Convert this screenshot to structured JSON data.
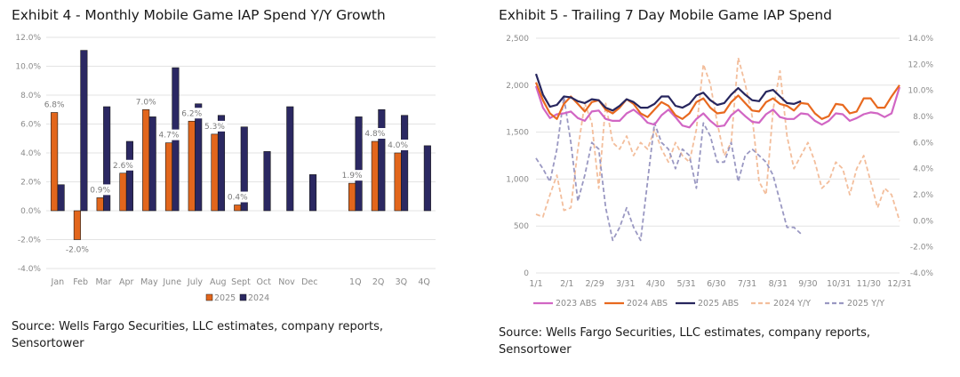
{
  "exhibit4": {
    "title": "Exhibit 4 - Monthly Mobile Game IAP Spend Y/Y Growth",
    "source": "Source: Wells Fargo Securities, LLC estimates, company reports, Sensortower"
  },
  "exhibit5": {
    "title": "Exhibit 5 - Trailing 7 Day Mobile Game IAP Spend",
    "source": "Source: Wells Fargo Securities, LLC estimates, company reports, Sensortower"
  },
  "chart_data": [
    {
      "type": "bar",
      "title": "Exhibit 4 - Monthly Mobile Game IAP Spend Y/Y Growth",
      "xlabel": "",
      "ylabel": "",
      "ylim": [
        -4.0,
        12.0
      ],
      "yticks": [
        "12.0%",
        "10.0%",
        "8.0%",
        "6.0%",
        "4.0%",
        "2.0%",
        "0.0%",
        "-2.0%",
        "-4.0%"
      ],
      "ytick_values": [
        12,
        10,
        8,
        6,
        4,
        2,
        0,
        -2,
        -4
      ],
      "grid": true,
      "legend_position": "bottom",
      "categories": [
        "Jan",
        "Feb",
        "Mar",
        "Apr",
        "May",
        "June",
        "July",
        "Aug",
        "Sept",
        "Oct",
        "Nov",
        "Dec",
        "",
        "1Q",
        "2Q",
        "3Q",
        "4Q"
      ],
      "series": [
        {
          "name": "2025",
          "color": "#E2661C",
          "values": [
            6.8,
            -2.0,
            0.9,
            2.6,
            7.0,
            4.7,
            6.2,
            5.3,
            0.4,
            null,
            null,
            null,
            null,
            1.9,
            4.8,
            4.0,
            null
          ],
          "labels": [
            "6.8%",
            "-2.0%",
            "0.9%",
            "2.6%",
            "7.0%",
            "4.7%",
            "6.2%",
            "5.3%",
            "0.4%",
            "",
            "",
            "",
            "",
            "1.9%",
            "4.8%",
            "4.0%",
            ""
          ]
        },
        {
          "name": "2024",
          "color": "#2B2862",
          "values": [
            1.8,
            11.1,
            7.2,
            4.8,
            6.5,
            9.9,
            7.4,
            6.6,
            5.8,
            4.1,
            7.2,
            2.5,
            null,
            6.5,
            7.0,
            6.6,
            4.5
          ]
        }
      ]
    },
    {
      "type": "line",
      "title": "Exhibit 5 - Trailing 7 Day Mobile Game IAP Spend",
      "ylim": [
        0,
        2500
      ],
      "y2lim": [
        -4.0,
        14.0
      ],
      "yticks": [
        "2,500",
        "2,000",
        "1,500",
        "1,000",
        "500",
        "0"
      ],
      "ytick_values": [
        2500,
        2000,
        1500,
        1000,
        500,
        0
      ],
      "y2ticks": [
        "14.0%",
        "12.0%",
        "10.0%",
        "8.0%",
        "6.0%",
        "4.0%",
        "2.0%",
        "0.0%",
        "-2.0%",
        "-4.0%"
      ],
      "y2tick_values": [
        14,
        12,
        10,
        8,
        6,
        4,
        2,
        0,
        -2,
        -4
      ],
      "x_ticks": [
        "1/1",
        "2/1",
        "2/29",
        "3/31",
        "4/30",
        "5/31",
        "6/30",
        "7/31",
        "8/31",
        "9/30",
        "10/31",
        "11/30",
        "12/31"
      ],
      "x_tick_days": [
        0,
        31,
        59,
        90,
        120,
        151,
        181,
        212,
        243,
        273,
        304,
        334,
        365
      ],
      "grid": true,
      "legend_position": "bottom",
      "x_days": [
        0,
        7,
        14,
        21,
        28,
        35,
        42,
        49,
        56,
        63,
        70,
        77,
        84,
        91,
        98,
        105,
        112,
        119,
        126,
        133,
        140,
        147,
        154,
        161,
        168,
        175,
        182,
        189,
        196,
        203,
        210,
        217,
        224,
        231,
        238,
        245,
        252,
        259,
        266,
        273,
        280,
        287,
        294,
        301,
        308,
        315,
        322,
        329,
        336,
        343,
        350,
        357,
        365
      ],
      "series": [
        {
          "name": "2023 ABS",
          "axis": "left",
          "color": "#D166C4",
          "dash": false,
          "values": [
            1990,
            1760,
            1650,
            1690,
            1700,
            1720,
            1650,
            1620,
            1720,
            1730,
            1640,
            1620,
            1620,
            1700,
            1740,
            1680,
            1600,
            1580,
            1680,
            1740,
            1660,
            1570,
            1550,
            1640,
            1700,
            1620,
            1560,
            1570,
            1680,
            1740,
            1670,
            1610,
            1600,
            1690,
            1740,
            1660,
            1640,
            1640,
            1700,
            1690,
            1620,
            1580,
            1620,
            1700,
            1690,
            1620,
            1650,
            1690,
            1710,
            1700,
            1660,
            1700,
            1980
          ]
        },
        {
          "name": "2024 ABS",
          "axis": "left",
          "color": "#E8691F",
          "dash": false,
          "values": [
            2030,
            1840,
            1700,
            1640,
            1800,
            1880,
            1800,
            1720,
            1820,
            1840,
            1740,
            1700,
            1760,
            1850,
            1800,
            1700,
            1660,
            1740,
            1820,
            1780,
            1680,
            1640,
            1700,
            1820,
            1860,
            1760,
            1700,
            1710,
            1820,
            1890,
            1810,
            1730,
            1720,
            1820,
            1860,
            1800,
            1780,
            1730,
            1810,
            1800,
            1700,
            1640,
            1670,
            1800,
            1790,
            1700,
            1720,
            1860,
            1860,
            1760,
            1760,
            1880,
            2000
          ]
        },
        {
          "name": "2025 ABS",
          "axis": "left",
          "color": "#27265E",
          "dash": false,
          "values": [
            2120,
            1900,
            1770,
            1790,
            1880,
            1870,
            1830,
            1810,
            1850,
            1840,
            1760,
            1730,
            1780,
            1850,
            1820,
            1760,
            1760,
            1800,
            1880,
            1880,
            1780,
            1760,
            1800,
            1890,
            1920,
            1840,
            1790,
            1810,
            1900,
            1970,
            1900,
            1840,
            1830,
            1930,
            1950,
            1880,
            1810,
            1800,
            1830
          ]
        },
        {
          "name": "2024 Y/Y",
          "axis": "right",
          "color": "#F3BE9C",
          "dash": true,
          "values": [
            0.5,
            0.3,
            2.0,
            3.5,
            0.8,
            1.0,
            5.5,
            9.0,
            7.5,
            2.5,
            9.0,
            6.0,
            5.5,
            6.5,
            5.0,
            6.0,
            5.5,
            7.0,
            5.5,
            4.5,
            6.0,
            5.0,
            4.5,
            7.0,
            12.0,
            10.5,
            7.5,
            5.0,
            6.0,
            12.5,
            10.5,
            8.0,
            3.0,
            2.0,
            8.5,
            11.5,
            6.5,
            4.0,
            5.0,
            6.0,
            4.5,
            2.5,
            3.0,
            4.5,
            4.0,
            2.0,
            4.0,
            5.0,
            3.0,
            1.0,
            2.5,
            2.0,
            0.0
          ]
        },
        {
          "name": "2025 Y/Y",
          "axis": "right",
          "color": "#9A98C2",
          "dash": true,
          "values": [
            4.8,
            4.0,
            3.0,
            5.5,
            9.5,
            6.0,
            1.5,
            3.5,
            6.0,
            5.5,
            1.0,
            -1.5,
            -0.5,
            1.0,
            -0.5,
            -1.5,
            3.0,
            7.5,
            6.0,
            5.5,
            4.0,
            5.5,
            5.0,
            2.5,
            7.5,
            6.5,
            4.5,
            4.5,
            6.0,
            3.0,
            5.0,
            5.5,
            5.0,
            4.5,
            3.5,
            1.5,
            -0.5,
            -0.5,
            -1.0
          ]
        }
      ]
    }
  ]
}
